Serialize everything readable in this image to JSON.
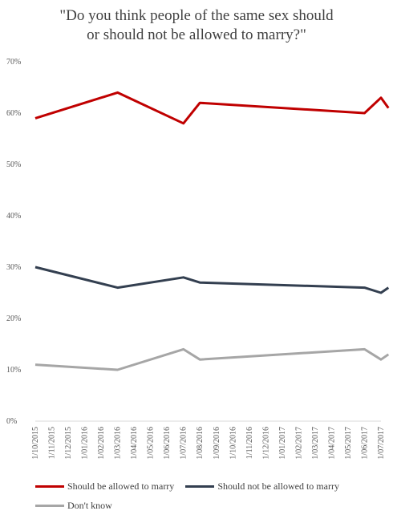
{
  "chart_data": {
    "type": "line",
    "title": "\"Do you think people of the same sex should\nor should not be allowed to marry?\"",
    "x": [
      "1/10/2015",
      "1/11/2015",
      "1/12/2015",
      "1/01/2016",
      "1/02/2016",
      "1/03/2016",
      "1/04/2016",
      "1/05/2016",
      "1/06/2016",
      "1/07/2016",
      "1/08/2016",
      "1/09/2016",
      "1/10/2016",
      "1/11/2016",
      "1/12/2016",
      "1/01/2017",
      "1/02/2017",
      "1/03/2017",
      "1/04/2017",
      "1/05/2017",
      "1/06/2017",
      "1/07/2017"
    ],
    "yticks": [
      "0%",
      "10%",
      "20%",
      "30%",
      "40%",
      "50%",
      "60%",
      "70%"
    ],
    "ylim": [
      0,
      70
    ],
    "grid": false,
    "legend_position": "bottom",
    "series": [
      {
        "name": "Should be allowed to marry",
        "color": "#C00000",
        "points": [
          {
            "x": "1/10/2015",
            "y": 59
          },
          {
            "x": "1/03/2016",
            "y": 64
          },
          {
            "x": "1/07/2016",
            "y": 58
          },
          {
            "x": "1/08/2016",
            "y": 62
          },
          {
            "x": "1/06/2017",
            "y": 60
          },
          {
            "x": "1/07/2017",
            "y": 63
          },
          {
            "x": "15/07/2017",
            "y": 61
          }
        ]
      },
      {
        "name": "Should not be allowed to marry",
        "color": "#333F50",
        "points": [
          {
            "x": "1/10/2015",
            "y": 30
          },
          {
            "x": "1/03/2016",
            "y": 26
          },
          {
            "x": "1/07/2016",
            "y": 28
          },
          {
            "x": "1/08/2016",
            "y": 27
          },
          {
            "x": "1/06/2017",
            "y": 26
          },
          {
            "x": "1/07/2017",
            "y": 25
          },
          {
            "x": "15/07/2017",
            "y": 26
          }
        ]
      },
      {
        "name": "Don't know",
        "color": "#A6A6A6",
        "points": [
          {
            "x": "1/10/2015",
            "y": 11
          },
          {
            "x": "1/03/2016",
            "y": 10
          },
          {
            "x": "1/07/2016",
            "y": 14
          },
          {
            "x": "1/08/2016",
            "y": 12
          },
          {
            "x": "1/06/2017",
            "y": 14
          },
          {
            "x": "1/07/2017",
            "y": 12
          },
          {
            "x": "15/07/2017",
            "y": 13
          }
        ]
      }
    ]
  }
}
